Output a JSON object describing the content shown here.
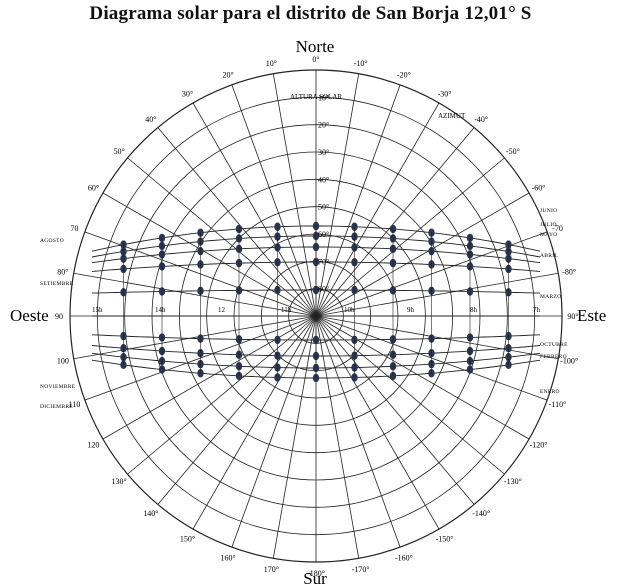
{
  "title": "Diagrama solar para el distrito de San Borja 12,01° S",
  "cardinals": {
    "north": "Norte",
    "south": "Sur",
    "west": "Oeste",
    "east": "Este"
  },
  "labels": {
    "altitude": "ALTURA SOLAR",
    "azimuth": "AZIMUT"
  },
  "azimuth_labels": [
    "0°",
    "-10°",
    "-20°",
    "-30°",
    "-40°",
    "-50°",
    "-60°",
    "-70",
    "-80°",
    "90°",
    "-100°",
    "-110°",
    "-120°",
    "-130°",
    "-140°",
    "-150°",
    "-160°",
    "-170°",
    "-180°",
    "170°",
    "160°",
    "150°",
    "140°",
    "130°",
    "120",
    "110",
    "100",
    "90",
    "80°",
    "70",
    "60°",
    "50°",
    "40°",
    "30°",
    "20°",
    "10°"
  ],
  "altitude_labels": [
    "10°",
    "20°",
    "30°",
    "40°",
    "50°",
    "60°",
    "70°",
    "80°"
  ],
  "hour_labels": [
    "15h",
    "14h",
    "12",
    "11h",
    "10h",
    "9h",
    "8h",
    "7h"
  ],
  "month_labels_left": [
    "AGOSTO",
    "SETIEMBRE",
    "NOVIEMBRE",
    "DICIEMBRE"
  ],
  "month_labels_right": [
    "JUNIO",
    "JULIO",
    "MAYO",
    "ABRIL",
    "MARZO",
    "OCTUBRE",
    "FEBRERO",
    "ENERO"
  ],
  "colors": {
    "line": "#222222",
    "marker": "#2a3550",
    "background": "#ffffff"
  },
  "chart_data": {
    "type": "polar-sun-path",
    "latitude": "12,01° S",
    "azimuth_step_deg": 10,
    "altitude_step_deg": 10,
    "hour_lines": [
      7,
      8,
      9,
      10,
      11,
      12,
      13,
      14,
      15,
      16,
      17
    ]
  }
}
